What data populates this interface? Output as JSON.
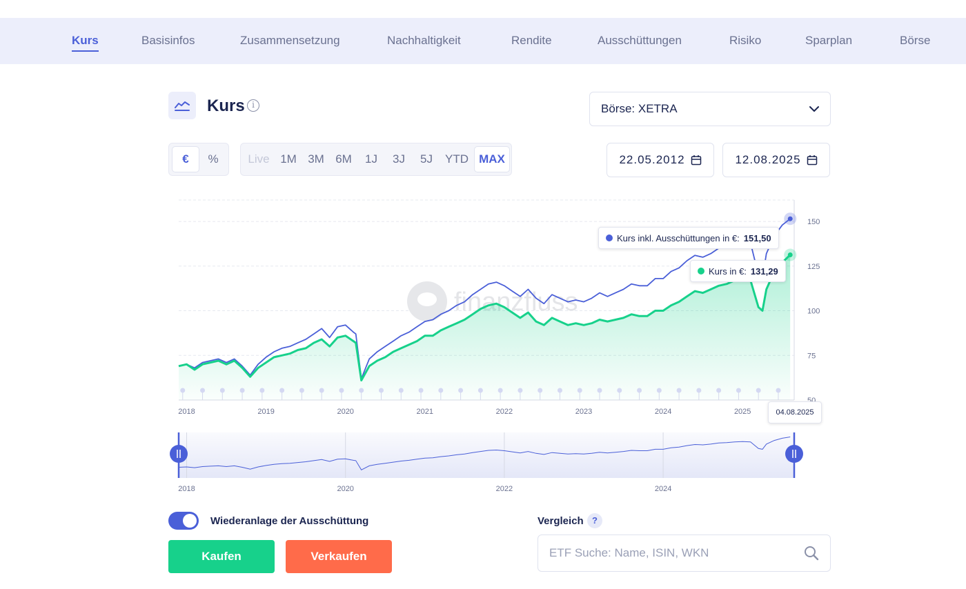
{
  "nav": {
    "items": [
      {
        "label": "Kurs",
        "active": true
      },
      {
        "label": "Basisinfos"
      },
      {
        "label": "Zusammensetzung"
      },
      {
        "label": "Nachhaltigkeit"
      },
      {
        "label": "Rendite"
      },
      {
        "label": "Ausschüttungen"
      },
      {
        "label": "Risiko"
      },
      {
        "label": "Sparplan"
      },
      {
        "label": "Börse"
      }
    ]
  },
  "section": {
    "title": "Kurs",
    "icon": "line-chart-icon",
    "info_icon": "info-icon"
  },
  "exchange": {
    "value": "Börse: XETRA",
    "icon": "chevron-down-icon"
  },
  "unit_toggle": {
    "options": [
      "€",
      "%"
    ],
    "selected": "€"
  },
  "time_ranges": {
    "options": [
      "Live",
      "1M",
      "3M",
      "6M",
      "1J",
      "3J",
      "5J",
      "YTD",
      "MAX"
    ],
    "selected": "MAX",
    "disabled": [
      "Live"
    ]
  },
  "date_from": "22.05.2012",
  "date_to": "12.08.2025",
  "colors": {
    "accent": "#4a5fd8",
    "series_total": "#4a5fd8",
    "series_price": "#17d18b",
    "buy": "#17d18b",
    "sell": "#ff6b4a",
    "nav_bg": "#eceefb"
  },
  "tooltips": {
    "total": {
      "label": "Kurs inkl. Ausschüttungen in €:",
      "value": "151,50"
    },
    "price": {
      "label": "Kurs in €:",
      "value": "131,29"
    },
    "date": "04.08.2025"
  },
  "watermark": "finanzfluss",
  "chart_data": {
    "type": "line",
    "yticks": [
      50,
      75,
      100,
      125,
      150
    ],
    "ylim": [
      50,
      162
    ],
    "xticks": [
      "2018",
      "2019",
      "2020",
      "2021",
      "2022",
      "2023",
      "2024",
      "2025"
    ],
    "navigator_ticks": [
      "2018",
      "2020",
      "2022",
      "2024"
    ],
    "xlim": [
      2017.9,
      2025.65
    ],
    "grid": true,
    "series": [
      {
        "name": "Kurs inkl. Ausschüttungen in €",
        "color": "#4a5fd8",
        "x": [
          2017.9,
          2018.0,
          2018.1,
          2018.2,
          2018.3,
          2018.4,
          2018.5,
          2018.6,
          2018.7,
          2018.8,
          2018.9,
          2019.0,
          2019.1,
          2019.2,
          2019.3,
          2019.4,
          2019.5,
          2019.6,
          2019.7,
          2019.8,
          2019.9,
          2020.0,
          2020.1,
          2020.13,
          2020.2,
          2020.3,
          2020.4,
          2020.5,
          2020.6,
          2020.7,
          2020.8,
          2020.9,
          2021.0,
          2021.1,
          2021.2,
          2021.3,
          2021.4,
          2021.5,
          2021.6,
          2021.7,
          2021.8,
          2021.9,
          2022.0,
          2022.1,
          2022.2,
          2022.3,
          2022.4,
          2022.5,
          2022.6,
          2022.7,
          2022.8,
          2022.9,
          2023.0,
          2023.1,
          2023.2,
          2023.3,
          2023.4,
          2023.5,
          2023.6,
          2023.7,
          2023.8,
          2023.9,
          2024.0,
          2024.1,
          2024.2,
          2024.3,
          2024.4,
          2024.5,
          2024.6,
          2024.7,
          2024.8,
          2024.9,
          2025.0,
          2025.1,
          2025.2,
          2025.25,
          2025.3,
          2025.4,
          2025.5,
          2025.6
        ],
        "values": [
          69,
          70,
          68,
          71,
          72,
          73,
          71,
          73,
          69,
          64,
          70,
          74,
          77,
          79,
          80,
          82,
          84,
          87,
          90,
          85,
          91,
          92,
          88,
          87,
          62,
          73,
          77,
          80,
          83,
          86,
          88,
          91,
          94,
          95,
          98,
          100,
          103,
          105,
          109,
          112,
          115,
          116,
          114,
          111,
          108,
          112,
          107,
          104,
          109,
          107,
          105,
          106,
          105,
          107,
          110,
          108,
          110,
          112,
          115,
          114,
          114,
          118,
          118,
          122,
          124,
          128,
          131,
          130,
          132,
          135,
          136,
          138,
          139,
          138,
          120,
          118,
          132,
          142,
          148,
          151.5
        ]
      },
      {
        "name": "Kurs in €",
        "color": "#17d18b",
        "x": [
          2017.9,
          2018.0,
          2018.1,
          2018.2,
          2018.3,
          2018.4,
          2018.5,
          2018.6,
          2018.7,
          2018.8,
          2018.9,
          2019.0,
          2019.1,
          2019.2,
          2019.3,
          2019.4,
          2019.5,
          2019.6,
          2019.7,
          2019.8,
          2019.9,
          2020.0,
          2020.1,
          2020.13,
          2020.2,
          2020.3,
          2020.4,
          2020.5,
          2020.6,
          2020.7,
          2020.8,
          2020.9,
          2021.0,
          2021.1,
          2021.2,
          2021.3,
          2021.4,
          2021.5,
          2021.6,
          2021.7,
          2021.8,
          2021.9,
          2022.0,
          2022.1,
          2022.2,
          2022.3,
          2022.4,
          2022.5,
          2022.6,
          2022.7,
          2022.8,
          2022.9,
          2023.0,
          2023.1,
          2023.2,
          2023.3,
          2023.4,
          2023.5,
          2023.6,
          2023.7,
          2023.8,
          2023.9,
          2024.0,
          2024.1,
          2024.2,
          2024.3,
          2024.4,
          2024.5,
          2024.6,
          2024.7,
          2024.8,
          2024.9,
          2025.0,
          2025.1,
          2025.2,
          2025.25,
          2025.3,
          2025.4,
          2025.5,
          2025.6
        ],
        "values": [
          69,
          70,
          67,
          70,
          71,
          72,
          70,
          72,
          68,
          63,
          68,
          71,
          74,
          75,
          76,
          78,
          79,
          82,
          84,
          80,
          85,
          86,
          83,
          82,
          61,
          69,
          72,
          74,
          77,
          79,
          81,
          83,
          86,
          86,
          89,
          91,
          93,
          95,
          98,
          101,
          103,
          104,
          102,
          99,
          96,
          99,
          94,
          92,
          96,
          94,
          92,
          93,
          92,
          93,
          95,
          94,
          95,
          96,
          98,
          97,
          97,
          100,
          100,
          103,
          105,
          108,
          111,
          110,
          112,
          114,
          115,
          117,
          118,
          117,
          102,
          100,
          112,
          122,
          127,
          131.29
        ]
      }
    ]
  },
  "reinvest": {
    "label": "Wiederanlage der Ausschüttung",
    "enabled": true
  },
  "buttons": {
    "buy": "Kaufen",
    "sell": "Verkaufen"
  },
  "compare": {
    "label": "Vergleich",
    "help": "?",
    "placeholder": "ETF Suche: Name, ISIN, WKN"
  }
}
